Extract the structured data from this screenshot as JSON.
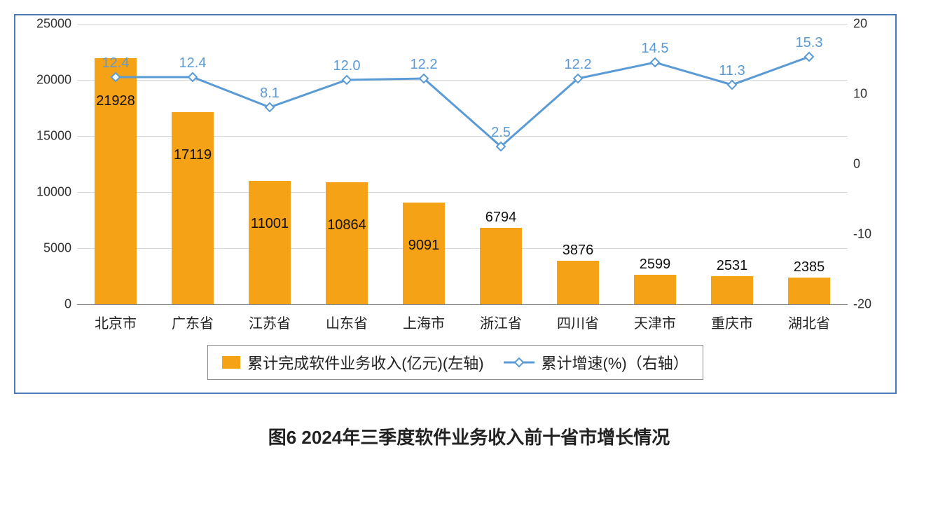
{
  "chart": {
    "type": "bar+line",
    "categories": [
      "北京市",
      "广东省",
      "江苏省",
      "山东省",
      "上海市",
      "浙江省",
      "四川省",
      "天津市",
      "重庆市",
      "湖北省"
    ],
    "bars": {
      "label": "累计完成软件业务收入(亿元)(左轴)",
      "values": [
        21928,
        17119,
        11001,
        10864,
        9091,
        6794,
        3876,
        2599,
        2531,
        2385
      ],
      "bar_color": "#f5a216",
      "bar_width_fraction": 0.55,
      "value_label_color": "#111111",
      "value_label_fontsize": 20
    },
    "line": {
      "label": "累计增速(%)（右轴）",
      "values": [
        12.4,
        12.4,
        8.1,
        12.0,
        12.2,
        2.5,
        12.2,
        14.5,
        11.3,
        15.3
      ],
      "line_color": "#5a9bd5",
      "line_width": 3,
      "marker_shape": "diamond",
      "marker_size": 12,
      "marker_fill": "#ffffff",
      "marker_stroke": "#5a9bd5",
      "marker_stroke_width": 2,
      "value_label_color": "#5a9bd5",
      "value_label_fontsize": 20
    },
    "y_left": {
      "min": 0,
      "max": 25000,
      "step": 5000
    },
    "y_right": {
      "min": -20,
      "max": 20,
      "step": 10
    },
    "gridline_color": "#d8d8d8",
    "axis_color": "#888888",
    "axis_label_fontsize": 18,
    "x_label_fontsize": 20,
    "background_color": "#ffffff",
    "border_color": "#4a7ab8"
  },
  "legend": {
    "bar_text": "累计完成软件业务收入(亿元)(左轴)",
    "line_text": "累计增速(%)（右轴）",
    "border_color": "#8a8a8a",
    "fontsize": 22
  },
  "caption": "图6  2024年三季度软件业务收入前十省市增长情况"
}
